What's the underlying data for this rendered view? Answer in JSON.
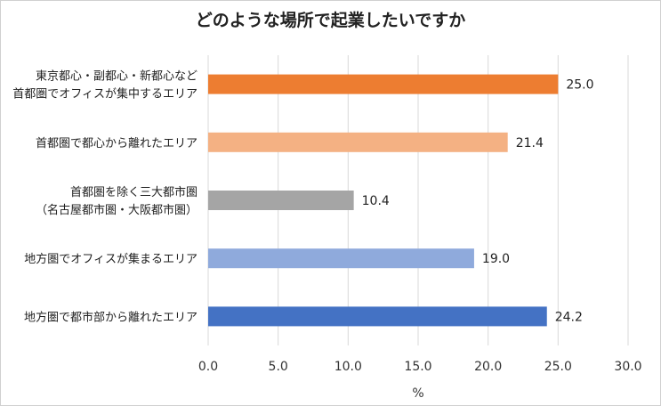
{
  "chart_data": {
    "type": "bar",
    "orientation": "horizontal",
    "title": "どのような場所で起業したいですか",
    "xlabel": "%",
    "ylabel": "",
    "xlim": [
      0,
      30
    ],
    "xticks": [
      "0.0",
      "5.0",
      "10.0",
      "15.0",
      "20.0",
      "25.0",
      "30.0"
    ],
    "grid": true,
    "categories": [
      [
        "東京都心・副都心・新都心など",
        "首都圏でオフィスが集中するエリア"
      ],
      [
        "首都圏で都心から離れたエリア"
      ],
      [
        "首都圏を除く三大都市圏",
        "（名古屋都市圏・大阪都市圏）"
      ],
      [
        "地方圏でオフィスが集まるエリア"
      ],
      [
        "地方圏で都市部から離れたエリア"
      ]
    ],
    "values": [
      25.0,
      21.4,
      10.4,
      19.0,
      24.2
    ],
    "value_labels": [
      "25.0",
      "21.4",
      "10.4",
      "19.0",
      "24.2"
    ],
    "colors": [
      "#ED7D31",
      "#F4B183",
      "#A5A5A5",
      "#8FAADC",
      "#4472C4"
    ]
  }
}
